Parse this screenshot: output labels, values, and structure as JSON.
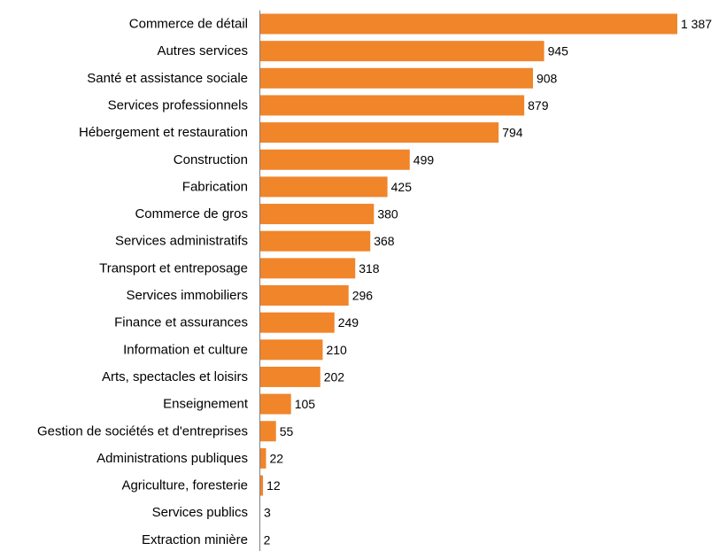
{
  "chart_data": {
    "type": "bar",
    "orientation": "horizontal",
    "title": "",
    "xlabel": "",
    "ylabel": "",
    "grid": false,
    "legend": "none",
    "bar_color": "#F0852A",
    "axis_color": "#808080",
    "categories": [
      "Commerce de détail",
      "Autres services",
      "Santé et assistance sociale",
      "Services professionnels",
      "Hébergement et restauration",
      "Construction",
      "Fabrication",
      "Commerce de gros",
      "Services administratifs",
      "Transport et entreposage",
      "Services immobiliers",
      "Finance et assurances",
      "Information et culture",
      "Arts, spectacles et loisirs",
      "Enseignement",
      "Gestion de sociétés et d'entreprises",
      "Administrations publiques",
      "Agriculture, foresterie",
      "Services publics",
      "Extraction minière"
    ],
    "values": [
      1387,
      945,
      908,
      879,
      794,
      499,
      425,
      380,
      368,
      318,
      296,
      249,
      210,
      202,
      105,
      55,
      22,
      12,
      3,
      2
    ],
    "value_labels": [
      "1 387",
      "945",
      "908",
      "879",
      "794",
      "499",
      "425",
      "380",
      "368",
      "318",
      "296",
      "249",
      "210",
      "202",
      "105",
      "55",
      "22",
      "12",
      "3",
      "2"
    ],
    "xlim": [
      0,
      1387
    ]
  }
}
